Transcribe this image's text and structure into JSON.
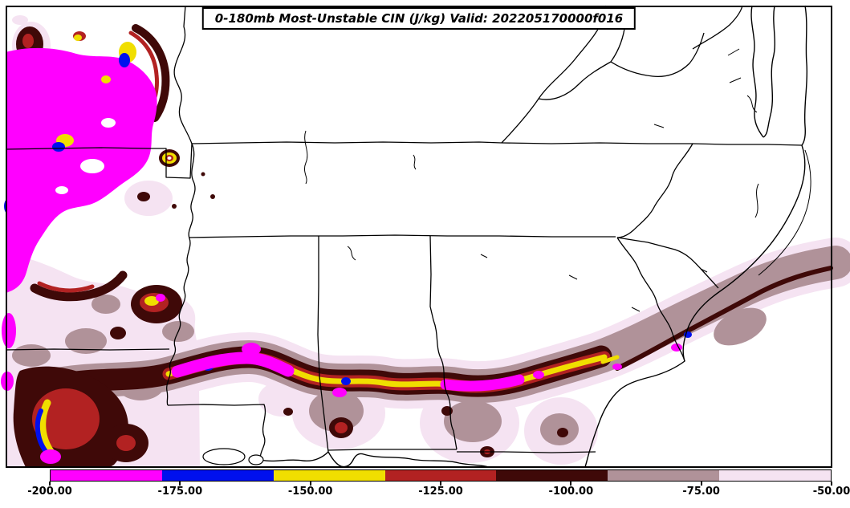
{
  "title": "0-180mb Most-Unstable CIN (J/kg) Valid: 202205170000f016",
  "chart_data": {
    "type": "heatmap",
    "title": "0-180mb Most-Unstable CIN (J/kg)",
    "valid_label": "Valid: 202205170000f016",
    "units": "J/kg",
    "level": "0-180mb",
    "colorbar": {
      "orientation": "horizontal",
      "position": "bottom",
      "labels": [
        "-200.00",
        "-175.00",
        "-150.00",
        "-125.00",
        "-100.00",
        "-75.00",
        "-50.00"
      ],
      "values": [
        -200,
        -175,
        -150,
        -125,
        -100,
        -75,
        -50
      ],
      "colors": [
        "#FF00FF",
        "#0010EE",
        "#F0DE00",
        "#B22222",
        "#3F0908",
        "#B09299",
        "#F5E3F2"
      ],
      "color_names": [
        "magenta",
        "blue",
        "yellow",
        "red",
        "maroon",
        "mauve",
        "pink"
      ]
    }
  }
}
